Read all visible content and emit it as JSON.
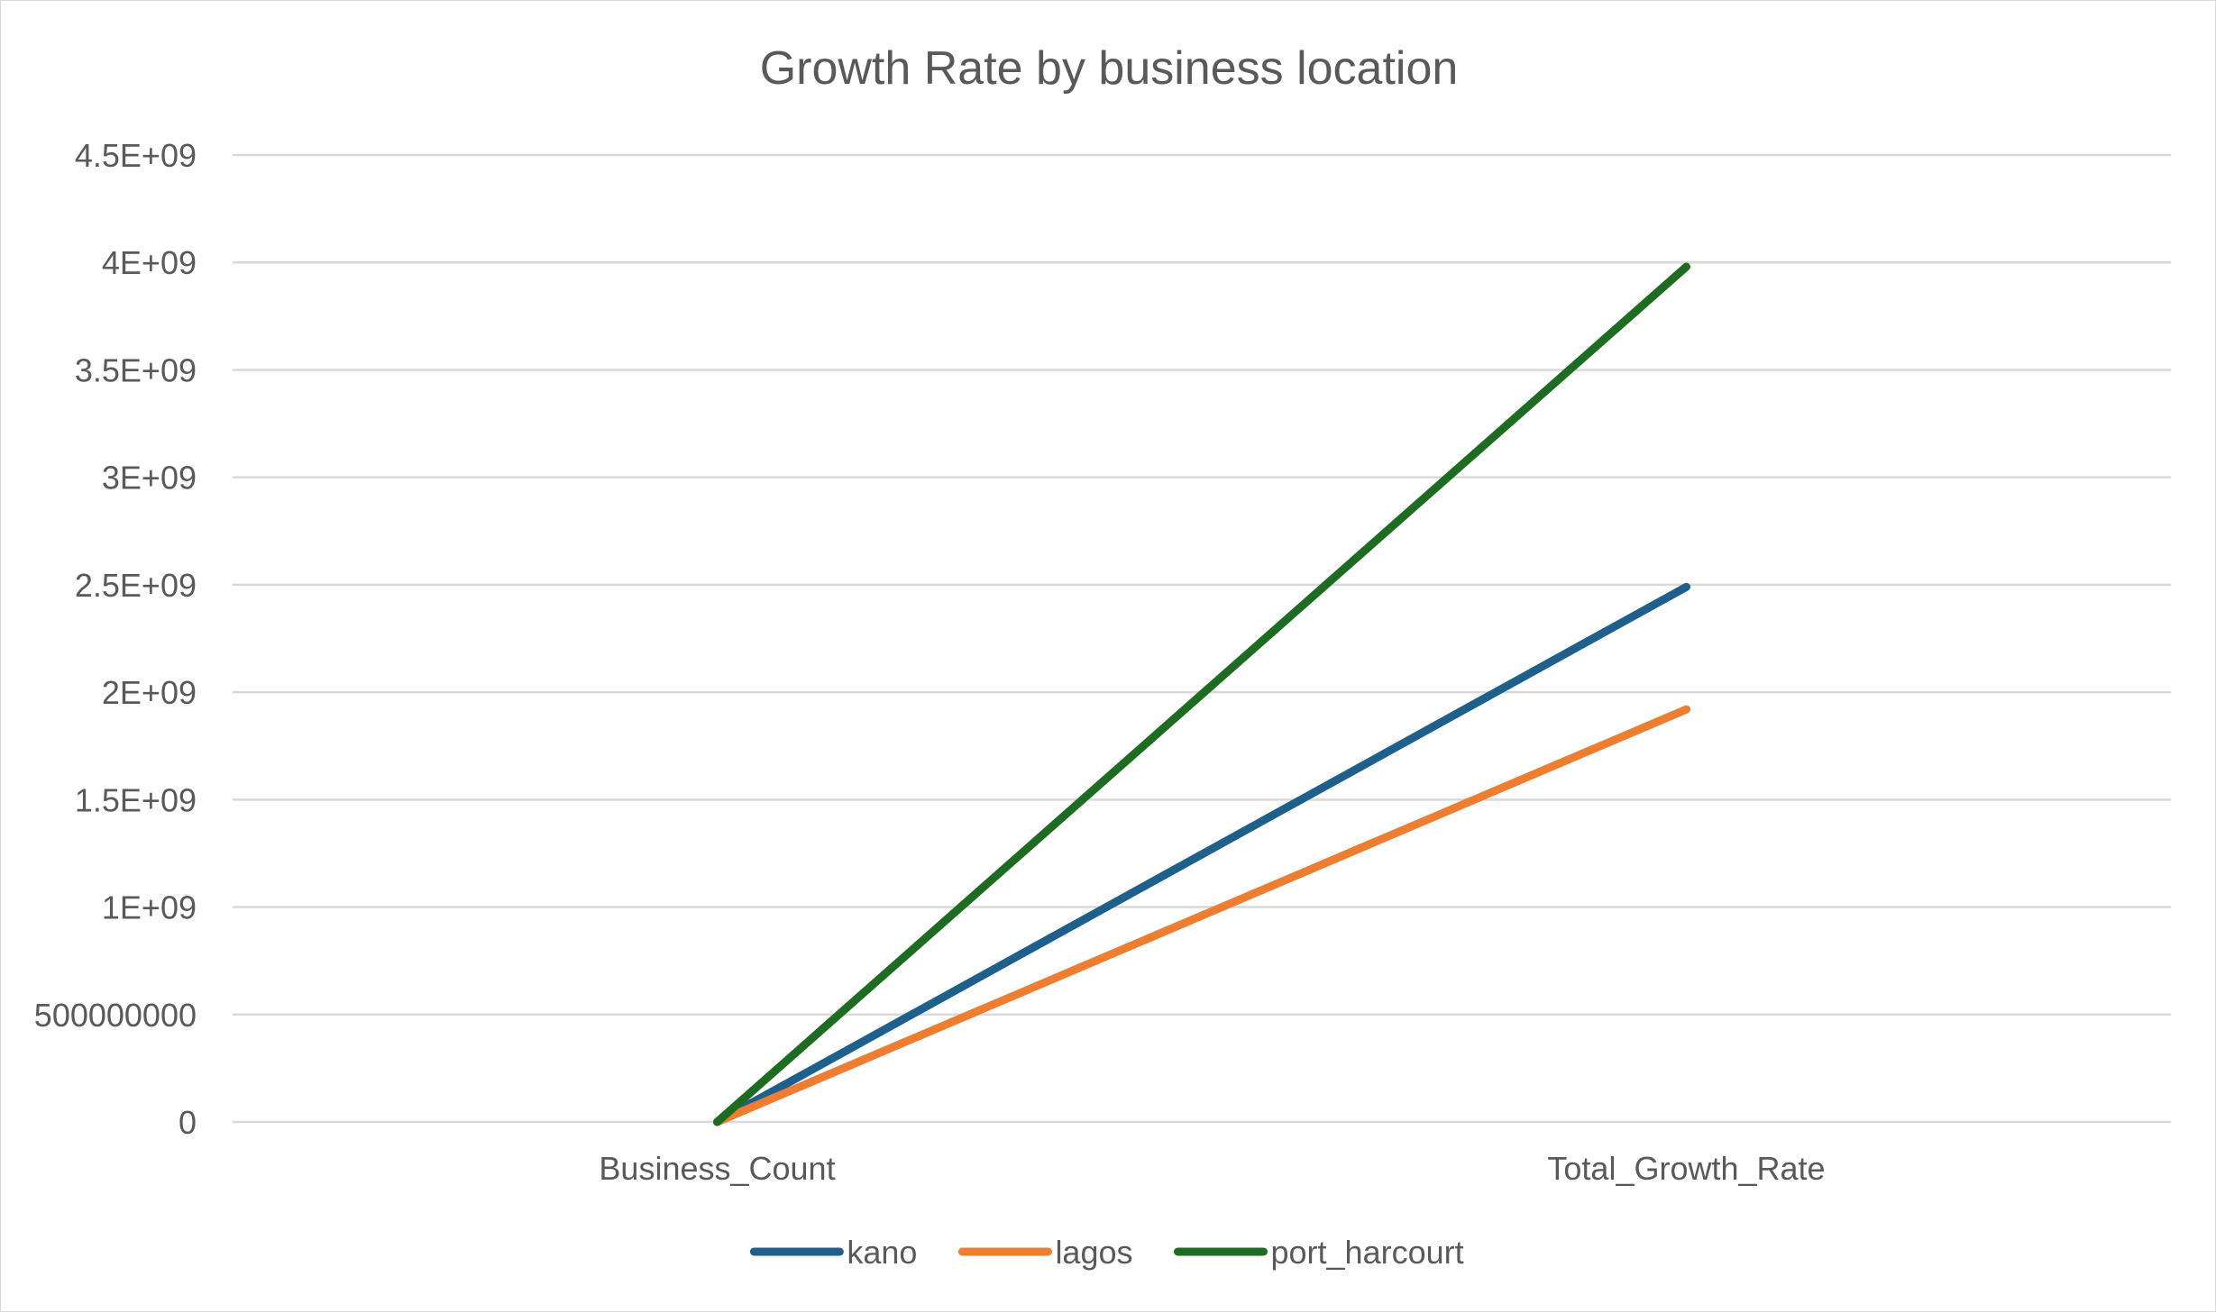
{
  "chart_data": {
    "type": "line",
    "title": "Growth Rate by business location",
    "xlabel": "",
    "ylabel": "",
    "categories": [
      "Business_Count",
      "Total_Growth_Rate"
    ],
    "y_ticks": [
      "0",
      "500000000",
      "1E+09",
      "1.5E+09",
      "2E+09",
      "2.5E+09",
      "3E+09",
      "3.5E+09",
      "4E+09",
      "4.5E+09"
    ],
    "ylim": [
      0,
      4500000000
    ],
    "grid": true,
    "legend_position": "bottom",
    "series": [
      {
        "name": "kano",
        "color": "#1f5f8b",
        "values": [
          0,
          2490000000
        ]
      },
      {
        "name": "lagos",
        "color": "#ed7d31",
        "values": [
          0,
          1920000000
        ]
      },
      {
        "name": "port_harcourt",
        "color": "#1e6b22",
        "values": [
          0,
          3980000000
        ]
      }
    ]
  }
}
